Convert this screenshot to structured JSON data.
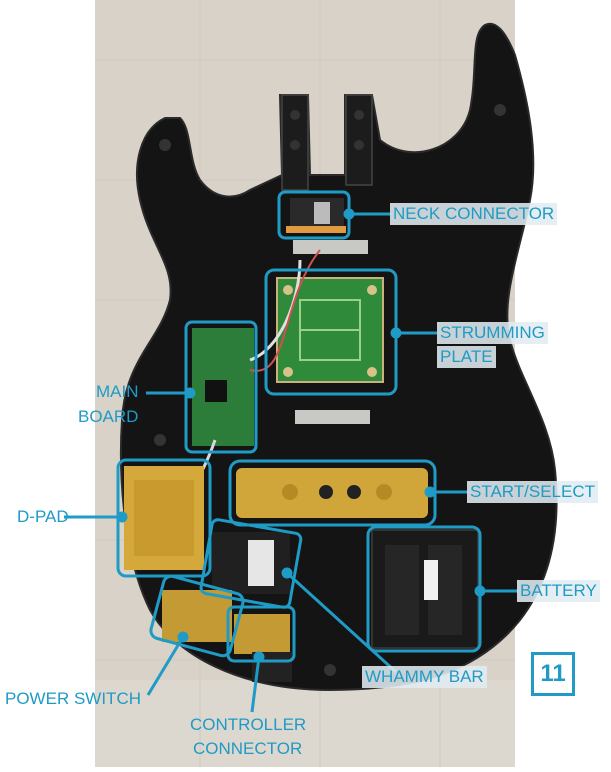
{
  "colors": {
    "accent": "#1f9bc6",
    "body": "#151515",
    "backdrop": "#d8d2c8"
  },
  "labels": {
    "neck_connector": "NECK CONNECTOR",
    "strumming_1": "STRUMMING",
    "strumming_2": "PLATE",
    "main_1": "MAIN",
    "main_2": "BOARD",
    "dpad": "D-PAD",
    "start_select": "START/SELECT",
    "battery": "BATTERY",
    "whammy": "WHAMMY BAR",
    "power": "POWER SWITCH",
    "controller_1": "CONTROLLER",
    "controller_2": "CONNECTOR"
  },
  "step_number": "11"
}
